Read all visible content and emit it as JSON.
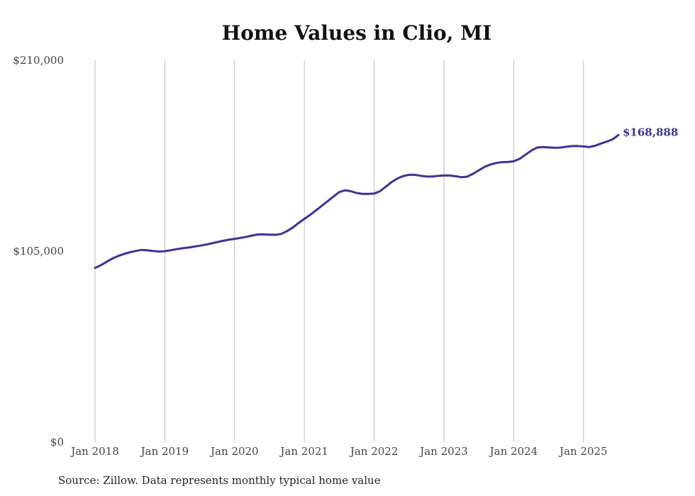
{
  "chart_data": {
    "type": "line",
    "title": "Home Values in Clio, MI",
    "xlabel": "",
    "ylabel": "",
    "ylim": [
      0,
      210000
    ],
    "y_ticks": [
      "$0",
      "$105,000",
      "$210,000"
    ],
    "y_tick_values": [
      0,
      105000,
      210000
    ],
    "x_ticks": [
      "Jan 2018",
      "Jan 2019",
      "Jan 2020",
      "Jan 2021",
      "Jan 2022",
      "Jan 2023",
      "Jan 2024",
      "Jan 2025"
    ],
    "grid": "vertical",
    "series": [
      {
        "name": "",
        "color": "#3a3497",
        "x": [
          "2018-01",
          "2018-02",
          "2018-03",
          "2018-04",
          "2018-05",
          "2018-06",
          "2018-07",
          "2018-08",
          "2018-09",
          "2018-10",
          "2018-11",
          "2018-12",
          "2019-01",
          "2019-02",
          "2019-03",
          "2019-04",
          "2019-05",
          "2019-06",
          "2019-07",
          "2019-08",
          "2019-09",
          "2019-10",
          "2019-11",
          "2019-12",
          "2020-01",
          "2020-02",
          "2020-03",
          "2020-04",
          "2020-05",
          "2020-06",
          "2020-07",
          "2020-08",
          "2020-09",
          "2020-10",
          "2020-11",
          "2020-12",
          "2021-01",
          "2021-02",
          "2021-03",
          "2021-04",
          "2021-05",
          "2021-06",
          "2021-07",
          "2021-08",
          "2021-09",
          "2021-10",
          "2021-11",
          "2021-12",
          "2022-01",
          "2022-02",
          "2022-03",
          "2022-04",
          "2022-05",
          "2022-06",
          "2022-07",
          "2022-08",
          "2022-09",
          "2022-10",
          "2022-11",
          "2022-12",
          "2023-01",
          "2023-02",
          "2023-03",
          "2023-04",
          "2023-05",
          "2023-06",
          "2023-07",
          "2023-08",
          "2023-09",
          "2023-10",
          "2023-11",
          "2023-12",
          "2024-01",
          "2024-02",
          "2024-03",
          "2024-04",
          "2024-05",
          "2024-06",
          "2024-07",
          "2024-08",
          "2024-09",
          "2024-10",
          "2024-11",
          "2024-12",
          "2025-01",
          "2025-02",
          "2025-03",
          "2025-04",
          "2025-05",
          "2025-06",
          "2025-07"
        ],
        "values": [
          95800,
          97300,
          99200,
          101000,
          102400,
          103500,
          104400,
          105100,
          105700,
          105500,
          105100,
          104800,
          105000,
          105500,
          106100,
          106600,
          107000,
          107500,
          108000,
          108600,
          109300,
          110000,
          110700,
          111300,
          111800,
          112300,
          112900,
          113600,
          114200,
          114300,
          114100,
          114000,
          114500,
          116000,
          118000,
          120500,
          122800,
          125000,
          127500,
          130000,
          132500,
          135000,
          137500,
          138500,
          138000,
          137000,
          136500,
          136500,
          136700,
          138000,
          140500,
          143000,
          145000,
          146300,
          147000,
          147000,
          146500,
          146100,
          146100,
          146400,
          146700,
          146600,
          146200,
          145700,
          146000,
          147600,
          149500,
          151400,
          152700,
          153500,
          154000,
          154100,
          154500,
          155800,
          158000,
          160300,
          162000,
          162300,
          162100,
          161900,
          162000,
          162400,
          162800,
          162900,
          162600,
          162300,
          163000,
          164200,
          165300,
          166500,
          168888
        ]
      }
    ],
    "end_label": "$168,888"
  },
  "footer": {
    "source": "Source: Zillow. Data represents monthly typical home value"
  }
}
